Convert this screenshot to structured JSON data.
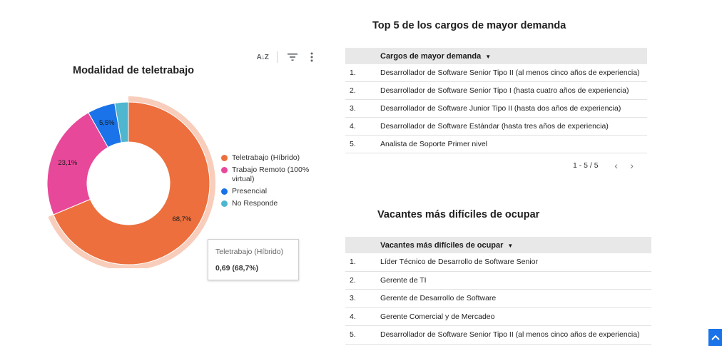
{
  "donut_chart": {
    "title": "Modalidad de teletrabajo",
    "toolbar": {
      "sort_label": "A↓Z",
      "filter_icon": "filter-icon",
      "more_icon": "more-vert-icon"
    },
    "legend": [
      {
        "label": "Teletrabajo (Híbrido)",
        "color": "#ec6f3d"
      },
      {
        "label": "Trabajo Remoto (100% virtual)",
        "color": "#e8489a"
      },
      {
        "label": "Presencial",
        "color": "#1a73e8"
      },
      {
        "label": "No Responde",
        "color": "#4fb6cf"
      }
    ],
    "tooltip": {
      "name": "Teletrabajo (Híbrido)",
      "value": "0,69 (68,7%)"
    }
  },
  "chart_data": {
    "type": "pie",
    "title": "Modalidad de teletrabajo",
    "categories": [
      "Teletrabajo (Híbrido)",
      "Trabajo Remoto (100% virtual)",
      "Presencial",
      "No Responde"
    ],
    "values": [
      68.7,
      23.1,
      5.5,
      2.7
    ],
    "data_labels": [
      "68,7%",
      "23,1%",
      "5,5%",
      ""
    ],
    "colors": [
      "#ec6f3d",
      "#e8489a",
      "#1a73e8",
      "#4fb6cf"
    ],
    "highlighted": "Teletrabajo (Híbrido)",
    "legend_position": "right"
  },
  "top5_table": {
    "title": "Top 5 de los cargos de mayor demanda",
    "header": "Cargos de mayor demanda",
    "rows": [
      {
        "num": "1.",
        "name": "Desarrollador de Software Senior Tipo II (al menos cinco años de experiencia)"
      },
      {
        "num": "2.",
        "name": "Desarrollador de Software Senior Tipo I (hasta cuatro años de experiencia)"
      },
      {
        "num": "3.",
        "name": "Desarrollador de Software Junior Tipo II (hasta dos años de experiencia)"
      },
      {
        "num": "4.",
        "name": "Desarrollador de Software Estándar (hasta tres años de experiencia)"
      },
      {
        "num": "5.",
        "name": "Analista de Soporte Primer nivel"
      }
    ],
    "pagination": {
      "text": "1 - 5 / 5",
      "prev_icon": "chevron-left-icon",
      "next_icon": "chevron-right-icon"
    }
  },
  "vacancies_table": {
    "title": "Vacantes más difíciles de ocupar",
    "header": "Vacantes más difíciles de ocupar",
    "rows": [
      {
        "num": "1.",
        "name": "Líder Técnico de Desarrollo de Software Senior"
      },
      {
        "num": "2.",
        "name": "Gerente de TI"
      },
      {
        "num": "3.",
        "name": "Gerente de Desarrollo de Software"
      },
      {
        "num": "4.",
        "name": "Gerente Comercial y de Mercadeo"
      },
      {
        "num": "5.",
        "name": "Desarrollador de Software Senior Tipo II (al menos cinco años de experiencia)"
      }
    ]
  },
  "corner_button": {
    "icon": "chevron-up-icon",
    "color": "#1a73e8"
  }
}
